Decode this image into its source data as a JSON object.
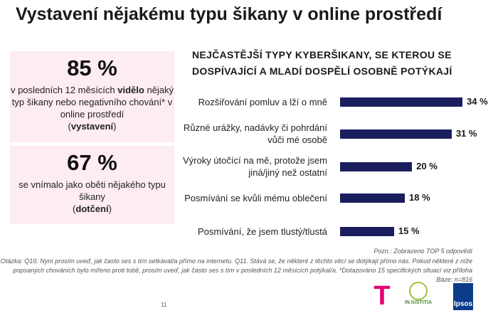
{
  "title": "Vystavení nějakému typu šikany v online prostředí",
  "stat1": {
    "value": "85 %",
    "pre": "v posledních 12 měsících ",
    "bold": "vidělo",
    "rest": " nějaký typ šikany nebo negativního chování* v online prostředí",
    "tag_open": "(",
    "tag": "vystavení",
    "tag_close": ")"
  },
  "stat2": {
    "value": "67 %",
    "text": "se vnímalo jako oběti nějakého typu šikany",
    "tag_open": "(",
    "tag": "dotčení",
    "tag_close": ")"
  },
  "chart_data": {
    "type": "bar",
    "orientation": "horizontal",
    "title": "NEJČASTĚJŠÍ TYPY KYBERŠIKANY, SE KTEROU SE DOSPÍVAJÍCÍ A MLADÍ DOSPĚLÍ OSOBNĚ POTÝKAJÍ",
    "categories": [
      "Rozšiřování pomluv a lží o mně",
      "Různé urážky, nadávky či pohrdání vůči mé osobě",
      "Výroky útočící na mě, protože jsem jiná/jiný než ostatní",
      "Posmívání se kvůli mému oblečení",
      "Posmívání, že jsem tlustý/tlustá"
    ],
    "values": [
      34,
      31,
      20,
      18,
      15
    ],
    "labels": [
      "34 %",
      "31 %",
      "20 %",
      "18 %",
      "15 %"
    ],
    "color": "#1b1e5c",
    "xlim": [
      0,
      34
    ]
  },
  "notes": {
    "pozn": "Pozn.: Zobrazeno TOP 5 odpovědí",
    "otazka1": "Otázka: Q10. Nyní prosím uveď, jak často ses s tím setkával/a přímo na internetu. Q11. Stává se, že některé z těchto věcí se dotýkají přímo nás. Pokud některé z níže",
    "otazka2": "popsaných chováních bylo mířeno proti tobě, prosím uveď, jak často ses s tím v posledních 12 měsících potýkal/a. *Dotazováno 15 specifických situací viz příloha",
    "baze": "Báze: n=816"
  },
  "page": "11",
  "logos": {
    "telekom": "T",
    "iniustitia": "IN IUSTITIA",
    "ipsos": "Ipsos"
  },
  "colors": {
    "box": "#fdecf1",
    "telekom": "#e20074",
    "ipsos": "#0b3c8c"
  }
}
